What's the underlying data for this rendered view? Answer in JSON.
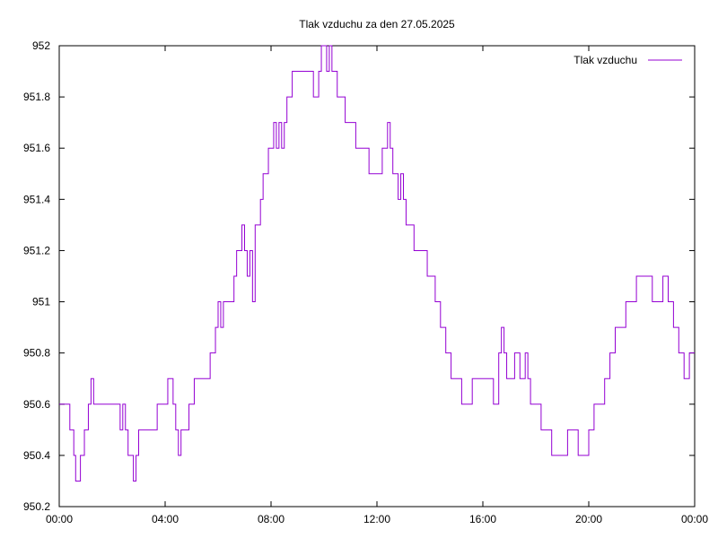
{
  "chart_data": {
    "type": "line",
    "title": "Tlak vzduchu za den 27.05.2025",
    "xlabel": "",
    "ylabel": "",
    "xlim": [
      0,
      24
    ],
    "ylim": [
      950.2,
      952
    ],
    "x_ticks": [
      0,
      4,
      8,
      12,
      16,
      20,
      24
    ],
    "x_tick_labels": [
      "00:00",
      "04:00",
      "08:00",
      "12:00",
      "16:00",
      "20:00",
      "00:00"
    ],
    "y_ticks": [
      950.2,
      950.4,
      950.6,
      950.8,
      951,
      951.2,
      951.4,
      951.6,
      951.8,
      952
    ],
    "y_tick_labels": [
      "950.2",
      "950.4",
      "950.6",
      "950.8",
      "951",
      "951.2",
      "951.4",
      "951.6",
      "951.8",
      "952"
    ],
    "grid": false,
    "legend_position": "top-right",
    "line_color": "#9400d3",
    "series": [
      {
        "name": "Tlak vzduchu",
        "x": [
          0.0,
          0.2,
          0.4,
          0.55,
          0.62,
          0.7,
          0.8,
          0.95,
          1.0,
          1.1,
          1.2,
          1.3,
          1.4,
          1.5,
          1.6,
          1.8,
          2.0,
          2.3,
          2.4,
          2.5,
          2.6,
          2.7,
          2.8,
          2.9,
          3.0,
          3.1,
          3.2,
          3.5,
          3.7,
          3.9,
          4.1,
          4.3,
          4.4,
          4.5,
          4.6,
          4.7,
          4.8,
          4.9,
          5.1,
          5.2,
          5.3,
          5.4,
          5.5,
          5.6,
          5.7,
          5.8,
          5.9,
          6.0,
          6.1,
          6.2,
          6.3,
          6.4,
          6.5,
          6.6,
          6.7,
          6.8,
          6.9,
          7.0,
          7.1,
          7.2,
          7.3,
          7.4,
          7.5,
          7.6,
          7.7,
          7.8,
          7.9,
          8.0,
          8.1,
          8.2,
          8.3,
          8.4,
          8.5,
          8.6,
          8.7,
          8.8,
          8.9,
          9.0,
          9.2,
          9.4,
          9.6,
          9.8,
          9.9,
          10.0,
          10.1,
          10.2,
          10.3,
          10.4,
          10.5,
          10.6,
          10.7,
          10.8,
          10.9,
          11.0,
          11.2,
          11.4,
          11.6,
          11.7,
          11.8,
          11.9,
          12.0,
          12.1,
          12.2,
          12.3,
          12.4,
          12.5,
          12.6,
          12.7,
          12.8,
          12.9,
          13.0,
          13.1,
          13.2,
          13.3,
          13.4,
          13.5,
          13.6,
          13.7,
          13.8,
          13.9,
          14.0,
          14.2,
          14.4,
          14.6,
          14.8,
          15.0,
          15.2,
          15.4,
          15.6,
          15.8,
          16.0,
          16.2,
          16.4,
          16.5,
          16.6,
          16.7,
          16.8,
          16.9,
          17.0,
          17.1,
          17.2,
          17.3,
          17.4,
          17.5,
          17.6,
          17.7,
          17.8,
          17.9,
          18.0,
          18.2,
          18.4,
          18.6,
          18.8,
          19.0,
          19.2,
          19.4,
          19.6,
          19.8,
          20.0,
          20.2,
          20.4,
          20.6,
          20.8,
          21.0,
          21.2,
          21.4,
          21.6,
          21.8,
          22.0,
          22.2,
          22.4,
          22.6,
          22.8,
          23.0,
          23.2,
          23.4,
          23.6,
          23.8,
          24.0
        ],
        "values": [
          950.6,
          950.6,
          950.5,
          950.4,
          950.3,
          950.3,
          950.4,
          950.5,
          950.5,
          950.6,
          950.7,
          950.6,
          950.6,
          950.6,
          950.6,
          950.6,
          950.6,
          950.5,
          950.6,
          950.5,
          950.4,
          950.4,
          950.3,
          950.4,
          950.5,
          950.5,
          950.5,
          950.5,
          950.6,
          950.6,
          950.7,
          950.6,
          950.5,
          950.4,
          950.5,
          950.5,
          950.5,
          950.6,
          950.7,
          950.7,
          950.7,
          950.7,
          950.7,
          950.7,
          950.8,
          950.8,
          950.9,
          951.0,
          950.9,
          951.0,
          951.0,
          951.0,
          951.0,
          951.1,
          951.2,
          951.2,
          951.3,
          951.2,
          951.1,
          951.2,
          951.0,
          951.3,
          951.3,
          951.4,
          951.5,
          951.5,
          951.6,
          951.6,
          951.7,
          951.6,
          951.7,
          951.6,
          951.7,
          951.8,
          951.8,
          951.9,
          951.9,
          951.9,
          951.9,
          951.9,
          951.8,
          951.9,
          952.0,
          952.0,
          951.9,
          952.0,
          951.9,
          951.9,
          951.8,
          951.8,
          951.8,
          951.7,
          951.7,
          951.7,
          951.6,
          951.6,
          951.6,
          951.5,
          951.5,
          951.5,
          951.5,
          951.5,
          951.6,
          951.6,
          951.7,
          951.6,
          951.5,
          951.5,
          951.4,
          951.5,
          951.4,
          951.3,
          951.3,
          951.3,
          951.2,
          951.2,
          951.2,
          951.2,
          951.2,
          951.1,
          951.1,
          951.0,
          950.9,
          950.8,
          950.7,
          950.7,
          950.6,
          950.6,
          950.7,
          950.7,
          950.7,
          950.7,
          950.6,
          950.6,
          950.8,
          950.9,
          950.8,
          950.7,
          950.7,
          950.7,
          950.8,
          950.8,
          950.7,
          950.7,
          950.8,
          950.7,
          950.6,
          950.6,
          950.6,
          950.5,
          950.5,
          950.4,
          950.4,
          950.4,
          950.5,
          950.5,
          950.4,
          950.4,
          950.5,
          950.6,
          950.6,
          950.7,
          950.8,
          950.9,
          950.9,
          951.0,
          951.0,
          951.1,
          951.1,
          951.1,
          951.0,
          951.0,
          951.1,
          951.0,
          950.9,
          950.8,
          950.7,
          950.8,
          950.8
        ]
      }
    ]
  }
}
